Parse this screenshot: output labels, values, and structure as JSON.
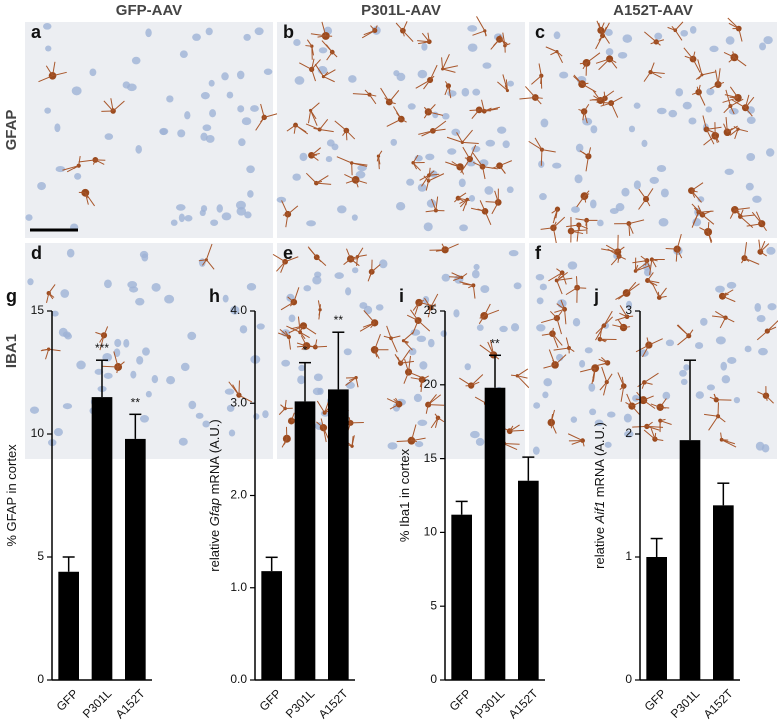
{
  "figure": {
    "column_headers": [
      "GFP-AAV",
      "P301L-AAV",
      "A152T-AAV"
    ],
    "row_labels": [
      "GFAP",
      "IBA1"
    ],
    "panel_labels": [
      "a",
      "b",
      "c",
      "d",
      "e",
      "f"
    ]
  },
  "chart_data": [
    {
      "type": "bar",
      "label": "g",
      "ylabel": [
        "% GFAP in cortex"
      ],
      "ylabel_italic": [],
      "categories": [
        "GFP",
        "P301L",
        "A152T"
      ],
      "values": [
        4.4,
        11.5,
        9.8
      ],
      "errors": [
        0.6,
        1.5,
        1.0
      ],
      "significance": [
        null,
        "***",
        "**"
      ],
      "color": "#000000",
      "ylim": [
        0,
        15
      ],
      "yticks": [
        0,
        5,
        10,
        15
      ]
    },
    {
      "type": "bar",
      "label": "h",
      "ylabel": [
        "relative ",
        "Gfap",
        " mRNA  (A.U.)"
      ],
      "ylabel_italic": [
        1
      ],
      "categories": [
        "GFP",
        "P301L",
        "A152T"
      ],
      "values": [
        1.18,
        3.02,
        3.15
      ],
      "errors": [
        0.15,
        0.42,
        0.62
      ],
      "significance": [
        null,
        "*",
        "**"
      ],
      "color": "#000000",
      "ylim": [
        0,
        4
      ],
      "yticks": [
        {
          "value": 0,
          "label": "0.0"
        },
        {
          "value": 1,
          "label": "1.0"
        },
        {
          "value": 2,
          "label": "2.0"
        },
        {
          "value": 3,
          "label": "3.0"
        },
        {
          "value": 4,
          "label": "4.0"
        }
      ]
    },
    {
      "type": "bar",
      "label": "i",
      "ylabel": [
        "% Iba1 in cortex"
      ],
      "ylabel_italic": [],
      "categories": [
        "GFP",
        "P301L",
        "A152T"
      ],
      "values": [
        11.2,
        19.8,
        13.5
      ],
      "errors": [
        0.9,
        2.2,
        1.6
      ],
      "significance": [
        null,
        "**",
        null
      ],
      "color": "#000000",
      "ylim": [
        0,
        25
      ],
      "yticks": [
        0,
        5,
        10,
        15,
        20,
        25
      ]
    },
    {
      "type": "bar",
      "label": "j",
      "ylabel": [
        "relative ",
        "Aif1",
        " mRNA  (A.U.)"
      ],
      "ylabel_italic": [
        1
      ],
      "categories": [
        "GFP",
        "P301L",
        "A152T"
      ],
      "values": [
        1.0,
        1.95,
        1.42
      ],
      "errors": [
        0.15,
        0.65,
        0.18
      ],
      "significance": [
        null,
        null,
        null
      ],
      "color": "#000000",
      "ylim": [
        0,
        3
      ],
      "yticks": [
        0,
        1,
        2,
        3
      ]
    }
  ]
}
